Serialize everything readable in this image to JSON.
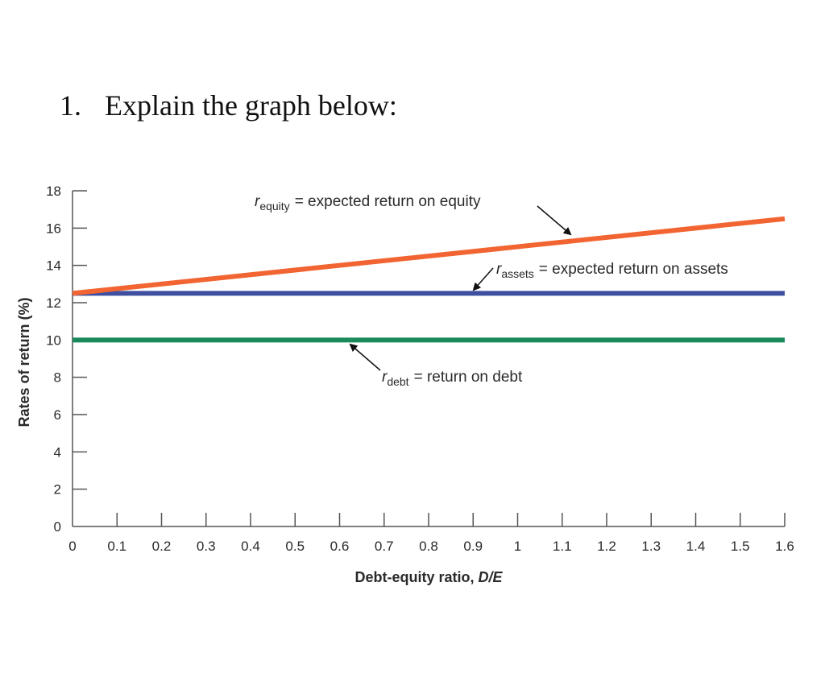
{
  "question": {
    "number": "1.",
    "text": "Explain the graph below:"
  },
  "chart_data": {
    "type": "line",
    "title": "",
    "xlabel": "Debt-equity ratio, D/E",
    "xlabel_parts": {
      "prefix": "Debt-equity ratio, ",
      "italic": "D/E"
    },
    "ylabel": "Rates of return (%)",
    "xlim": [
      0,
      1.6
    ],
    "ylim": [
      0,
      18
    ],
    "x_ticks": [
      "0",
      "0.1",
      "0.2",
      "0.3",
      "0.4",
      "0.5",
      "0.6",
      "0.7",
      "0.8",
      "0.9",
      "1",
      "1.1",
      "1.2",
      "1.3",
      "1.4",
      "1.5",
      "1.6"
    ],
    "y_ticks": [
      "0",
      "2",
      "4",
      "6",
      "8",
      "10",
      "12",
      "14",
      "16",
      "18"
    ],
    "grid": false,
    "legend": "inline annotations",
    "series": [
      {
        "name": "r_equity",
        "label": "expected return on equity",
        "color": "#f26532",
        "x": [
          0,
          1.6
        ],
        "y": [
          12.5,
          16.5
        ]
      },
      {
        "name": "r_assets",
        "label": "expected return on assets",
        "color": "#3f4fa0",
        "x": [
          0,
          1.6
        ],
        "y": [
          12.5,
          12.5
        ]
      },
      {
        "name": "r_debt",
        "label": "return on debt",
        "color": "#1b8a5a",
        "x": [
          0,
          1.6
        ],
        "y": [
          10,
          10
        ]
      }
    ],
    "annotations": [
      {
        "symbol": "r",
        "subscript": "equity",
        "text": "= expected return on equity"
      },
      {
        "symbol": "r",
        "subscript": "assets",
        "text": "= expected return on assets"
      },
      {
        "symbol": "r",
        "subscript": "debt",
        "text": "= return on debt"
      }
    ]
  }
}
